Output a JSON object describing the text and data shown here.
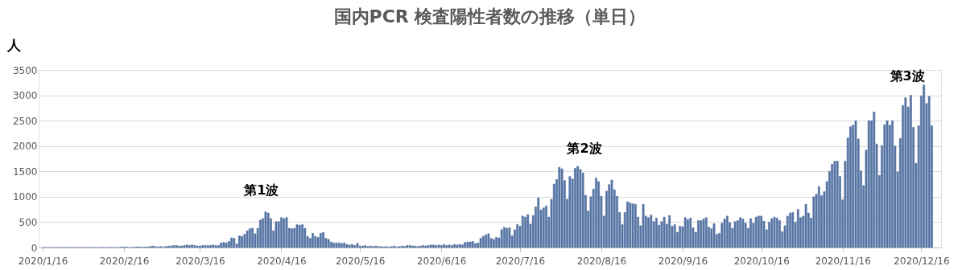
{
  "chart_data": {
    "type": "bar",
    "title": "国内PCR 検査陽性者数の推移（単日）",
    "ylabel": "人",
    "color": "#5573a3",
    "grid": "y",
    "ylim": [
      0,
      3500
    ],
    "yticks": [
      0,
      500,
      1000,
      1500,
      2000,
      2500,
      3000,
      3500
    ],
    "xlim": [
      "2020-01-16",
      "2020-12-22"
    ],
    "xticks": [
      {
        "value": "2020-01-16",
        "label": "2020/1/16"
      },
      {
        "value": "2020-02-16",
        "label": "2020/2/16"
      },
      {
        "value": "2020-03-16",
        "label": "2020/3/16"
      },
      {
        "value": "2020-04-16",
        "label": "2020/4/16"
      },
      {
        "value": "2020-05-16",
        "label": "2020/5/16"
      },
      {
        "value": "2020-06-16",
        "label": "2020/6/16"
      },
      {
        "value": "2020-07-16",
        "label": "2020/7/16"
      },
      {
        "value": "2020-08-16",
        "label": "2020/8/16"
      },
      {
        "value": "2020-09-16",
        "label": "2020/9/16"
      },
      {
        "value": "2020-10-16",
        "label": "2020/10/16"
      },
      {
        "value": "2020-11-16",
        "label": "2020/11/16"
      },
      {
        "value": "2020-12-16",
        "label": "2020/12/16"
      }
    ],
    "annotations": [
      "第1波",
      "第2波",
      "第3波"
    ],
    "x": [
      "2020-01-16",
      "2020-01-17",
      "2020-01-18",
      "2020-01-19",
      "2020-01-20",
      "2020-01-21",
      "2020-01-22",
      "2020-01-23",
      "2020-01-24",
      "2020-01-25",
      "2020-01-26",
      "2020-01-27",
      "2020-01-28",
      "2020-01-29",
      "2020-01-30",
      "2020-01-31",
      "2020-02-01",
      "2020-02-02",
      "2020-02-03",
      "2020-02-04",
      "2020-02-05",
      "2020-02-06",
      "2020-02-07",
      "2020-02-08",
      "2020-02-09",
      "2020-02-10",
      "2020-02-11",
      "2020-02-12",
      "2020-02-13",
      "2020-02-14",
      "2020-02-15",
      "2020-02-16",
      "2020-02-17",
      "2020-02-18",
      "2020-02-19",
      "2020-02-20",
      "2020-02-21",
      "2020-02-22",
      "2020-02-23",
      "2020-02-24",
      "2020-02-25",
      "2020-02-26",
      "2020-02-27",
      "2020-02-28",
      "2020-02-29",
      "2020-03-01",
      "2020-03-02",
      "2020-03-03",
      "2020-03-04",
      "2020-03-05",
      "2020-03-06",
      "2020-03-07",
      "2020-03-08",
      "2020-03-09",
      "2020-03-10",
      "2020-03-11",
      "2020-03-12",
      "2020-03-13",
      "2020-03-14",
      "2020-03-15",
      "2020-03-16",
      "2020-03-17",
      "2020-03-18",
      "2020-03-19",
      "2020-03-20",
      "2020-03-21",
      "2020-03-22",
      "2020-03-23",
      "2020-03-24",
      "2020-03-25",
      "2020-03-26",
      "2020-03-27",
      "2020-03-28",
      "2020-03-29",
      "2020-03-30",
      "2020-03-31",
      "2020-04-01",
      "2020-04-02",
      "2020-04-03",
      "2020-04-04",
      "2020-04-05",
      "2020-04-06",
      "2020-04-07",
      "2020-04-08",
      "2020-04-09",
      "2020-04-10",
      "2020-04-11",
      "2020-04-12",
      "2020-04-13",
      "2020-04-14",
      "2020-04-15",
      "2020-04-16",
      "2020-04-17",
      "2020-04-18",
      "2020-04-19",
      "2020-04-20",
      "2020-04-21",
      "2020-04-22",
      "2020-04-23",
      "2020-04-24",
      "2020-04-25",
      "2020-04-26",
      "2020-04-27",
      "2020-04-28",
      "2020-04-29",
      "2020-04-30",
      "2020-05-01",
      "2020-05-02",
      "2020-05-03",
      "2020-05-04",
      "2020-05-05",
      "2020-05-06",
      "2020-05-07",
      "2020-05-08",
      "2020-05-09",
      "2020-05-10",
      "2020-05-11",
      "2020-05-12",
      "2020-05-13",
      "2020-05-14",
      "2020-05-15",
      "2020-05-16",
      "2020-05-17",
      "2020-05-18",
      "2020-05-19",
      "2020-05-20",
      "2020-05-21",
      "2020-05-22",
      "2020-05-23",
      "2020-05-24",
      "2020-05-25",
      "2020-05-26",
      "2020-05-27",
      "2020-05-28",
      "2020-05-29",
      "2020-05-30",
      "2020-05-31",
      "2020-06-01",
      "2020-06-02",
      "2020-06-03",
      "2020-06-04",
      "2020-06-05",
      "2020-06-06",
      "2020-06-07",
      "2020-06-08",
      "2020-06-09",
      "2020-06-10",
      "2020-06-11",
      "2020-06-12",
      "2020-06-13",
      "2020-06-14",
      "2020-06-15",
      "2020-06-16",
      "2020-06-17",
      "2020-06-18",
      "2020-06-19",
      "2020-06-20",
      "2020-06-21",
      "2020-06-22",
      "2020-06-23",
      "2020-06-24",
      "2020-06-25",
      "2020-06-26",
      "2020-06-27",
      "2020-06-28",
      "2020-06-29",
      "2020-06-30",
      "2020-07-01",
      "2020-07-02",
      "2020-07-03",
      "2020-07-04",
      "2020-07-05",
      "2020-07-06",
      "2020-07-07",
      "2020-07-08",
      "2020-07-09",
      "2020-07-10",
      "2020-07-11",
      "2020-07-12",
      "2020-07-13",
      "2020-07-14",
      "2020-07-15",
      "2020-07-16",
      "2020-07-17",
      "2020-07-18",
      "2020-07-19",
      "2020-07-20",
      "2020-07-21",
      "2020-07-22",
      "2020-07-23",
      "2020-07-24",
      "2020-07-25",
      "2020-07-26",
      "2020-07-27",
      "2020-07-28",
      "2020-07-29",
      "2020-07-30",
      "2020-07-31",
      "2020-08-01",
      "2020-08-02",
      "2020-08-03",
      "2020-08-04",
      "2020-08-05",
      "2020-08-06",
      "2020-08-07",
      "2020-08-08",
      "2020-08-09",
      "2020-08-10",
      "2020-08-11",
      "2020-08-12",
      "2020-08-13",
      "2020-08-14",
      "2020-08-15",
      "2020-08-16",
      "2020-08-17",
      "2020-08-18",
      "2020-08-19",
      "2020-08-20",
      "2020-08-21",
      "2020-08-22",
      "2020-08-23",
      "2020-08-24",
      "2020-08-25",
      "2020-08-26",
      "2020-08-27",
      "2020-08-28",
      "2020-08-29",
      "2020-08-30",
      "2020-08-31",
      "2020-09-01",
      "2020-09-02",
      "2020-09-03",
      "2020-09-04",
      "2020-09-05",
      "2020-09-06",
      "2020-09-07",
      "2020-09-08",
      "2020-09-09",
      "2020-09-10",
      "2020-09-11",
      "2020-09-12",
      "2020-09-13",
      "2020-09-14",
      "2020-09-15",
      "2020-09-16",
      "2020-09-17",
      "2020-09-18",
      "2020-09-19",
      "2020-09-20",
      "2020-09-21",
      "2020-09-22",
      "2020-09-23",
      "2020-09-24",
      "2020-09-25",
      "2020-09-26",
      "2020-09-27",
      "2020-09-28",
      "2020-09-29",
      "2020-09-30",
      "2020-10-01",
      "2020-10-02",
      "2020-10-03",
      "2020-10-04",
      "2020-10-05",
      "2020-10-06",
      "2020-10-07",
      "2020-10-08",
      "2020-10-09",
      "2020-10-10",
      "2020-10-11",
      "2020-10-12",
      "2020-10-13",
      "2020-10-14",
      "2020-10-15",
      "2020-10-16",
      "2020-10-17",
      "2020-10-18",
      "2020-10-19",
      "2020-10-20",
      "2020-10-21",
      "2020-10-22",
      "2020-10-23",
      "2020-10-24",
      "2020-10-25",
      "2020-10-26",
      "2020-10-27",
      "2020-10-28",
      "2020-10-29",
      "2020-10-30",
      "2020-10-31",
      "2020-11-01",
      "2020-11-02",
      "2020-11-03",
      "2020-11-04",
      "2020-11-05",
      "2020-11-06",
      "2020-11-07",
      "2020-11-08",
      "2020-11-09",
      "2020-11-10",
      "2020-11-11",
      "2020-11-12",
      "2020-11-13",
      "2020-11-14",
      "2020-11-15",
      "2020-11-16",
      "2020-11-17",
      "2020-11-18",
      "2020-11-19",
      "2020-11-20",
      "2020-11-21",
      "2020-11-22",
      "2020-11-23",
      "2020-11-24",
      "2020-11-25",
      "2020-11-26",
      "2020-11-27",
      "2020-11-28",
      "2020-11-29",
      "2020-11-30",
      "2020-12-01",
      "2020-12-02",
      "2020-12-03",
      "2020-12-04",
      "2020-12-05",
      "2020-12-06",
      "2020-12-07",
      "2020-12-08",
      "2020-12-09",
      "2020-12-10",
      "2020-12-11",
      "2020-12-12",
      "2020-12-13",
      "2020-12-14",
      "2020-12-15",
      "2020-12-16",
      "2020-12-17",
      "2020-12-18",
      "2020-12-19",
      "2020-12-20"
    ],
    "values": [
      0,
      0,
      0,
      0,
      0,
      0,
      0,
      0,
      0,
      0,
      0,
      0,
      0,
      0,
      0,
      0,
      0,
      0,
      0,
      0,
      0,
      0,
      0,
      0,
      0,
      0,
      0,
      0,
      0,
      0,
      10,
      10,
      10,
      0,
      0,
      10,
      10,
      10,
      10,
      10,
      10,
      20,
      30,
      20,
      10,
      20,
      10,
      20,
      30,
      30,
      40,
      40,
      30,
      30,
      40,
      50,
      40,
      50,
      40,
      30,
      30,
      40,
      40,
      40,
      40,
      50,
      40,
      40,
      90,
      100,
      90,
      120,
      190,
      180,
      70,
      230,
      220,
      260,
      330,
      370,
      380,
      270,
      380,
      540,
      570,
      700,
      680,
      570,
      330,
      510,
      510,
      590,
      570,
      590,
      380,
      370,
      380,
      450,
      440,
      450,
      380,
      220,
      180,
      280,
      220,
      200,
      280,
      300,
      180,
      160,
      110,
      90,
      90,
      90,
      80,
      90,
      60,
      50,
      60,
      40,
      80,
      30,
      30,
      40,
      20,
      30,
      20,
      30,
      20,
      20,
      10,
      20,
      10,
      20,
      30,
      10,
      20,
      30,
      20,
      40,
      40,
      30,
      30,
      20,
      30,
      40,
      30,
      40,
      50,
      50,
      40,
      50,
      40,
      60,
      40,
      50,
      40,
      60,
      50,
      60,
      50,
      100,
      110,
      110,
      120,
      80,
      90,
      180,
      220,
      250,
      270,
      180,
      160,
      200,
      190,
      350,
      400,
      380,
      390,
      230,
      350,
      450,
      420,
      620,
      600,
      650,
      460,
      630,
      800,
      980,
      740,
      780,
      820,
      600,
      950,
      1250,
      1340,
      1580,
      1550,
      1320,
      950,
      1400,
      1350,
      1560,
      1600,
      1540,
      1470,
      1030,
      720,
      1000,
      1150,
      1370,
      1300,
      1010,
      620,
      1110,
      1240,
      1330,
      1140,
      1010,
      690,
      450,
      690,
      900,
      880,
      860,
      850,
      600,
      430,
      850,
      620,
      590,
      640,
      510,
      580,
      440,
      510,
      600,
      460,
      630,
      420,
      450,
      300,
      420,
      410,
      590,
      550,
      580,
      390,
      300,
      530,
      530,
      560,
      590,
      400,
      370,
      470,
      260,
      280,
      480,
      560,
      620,
      490,
      380,
      510,
      530,
      590,
      560,
      480,
      380,
      570,
      480,
      600,
      620,
      620,
      520,
      350,
      500,
      570,
      600,
      580,
      530,
      310,
      430,
      620,
      680,
      690,
      500,
      750,
      590,
      620,
      850,
      680,
      580,
      1000,
      1050,
      1200,
      1020,
      1100,
      1300,
      1500,
      1640,
      1700,
      1700,
      1400,
      940,
      1700,
      2160,
      2380,
      2410,
      2500,
      2140,
      1510,
      1220,
      1920,
      2500,
      2500,
      2670,
      2040,
      1420,
      2010,
      2420,
      2500,
      2410,
      2500,
      2000,
      1490,
      2150,
      2800,
      2950,
      2770,
      3000,
      2370,
      1660,
      2400,
      2990,
      3200,
      2840,
      2980,
      2400
    ]
  }
}
